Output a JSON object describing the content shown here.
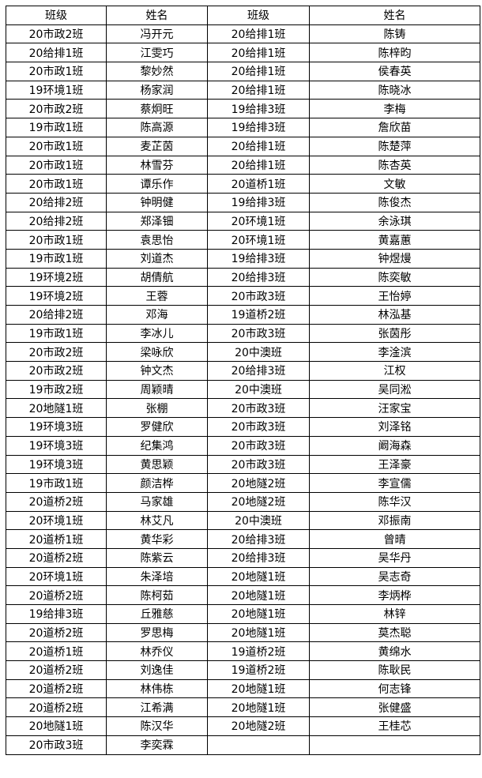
{
  "headers": [
    "班级",
    "姓名",
    "班级",
    "姓名"
  ],
  "rows": [
    [
      "20市政2班",
      "冯开元",
      "20给排1班",
      "陈铸"
    ],
    [
      "20给排1班",
      "江雯巧",
      "20给排1班",
      "陈梓昀"
    ],
    [
      "20市政1班",
      "黎妙然",
      "20给排1班",
      "侯春英"
    ],
    [
      "19环境1班",
      "杨家润",
      "20给排1班",
      "陈晓冰"
    ],
    [
      "20市政2班",
      "蔡炯旺",
      "19给排3班",
      "李梅"
    ],
    [
      "19市政1班",
      "陈高源",
      "19给排3班",
      "詹欣苗"
    ],
    [
      "20市政1班",
      "麦芷茵",
      "20给排1班",
      "陈楚萍"
    ],
    [
      "20市政1班",
      "林雪芬",
      "20给排1班",
      "陈杏英"
    ],
    [
      "20市政1班",
      "谭乐作",
      "20道桥1班",
      "文敏"
    ],
    [
      "20给排2班",
      "钟明健",
      "19给排3班",
      "陈俊杰"
    ],
    [
      "20给排2班",
      "郑泽钿",
      "20环境1班",
      "余泳琪"
    ],
    [
      "20市政1班",
      "袁思怡",
      "20环境1班",
      "黄嘉蕙"
    ],
    [
      "19市政1班",
      "刘道杰",
      "19给排3班",
      "钟煜熳"
    ],
    [
      "19环境2班",
      "胡倩航",
      "20给排3班",
      "陈奕敏"
    ],
    [
      "19环境2班",
      "王蓉",
      "20市政3班",
      "王怡婷"
    ],
    [
      "20给排2班",
      "邓海",
      "19道桥2班",
      "林泓基"
    ],
    [
      "19市政1班",
      "李冰儿",
      "20市政3班",
      "张茵彤"
    ],
    [
      "20市政2班",
      "梁咏欣",
      "20中澳班",
      "李淦滨"
    ],
    [
      "20市政2班",
      "钟文杰",
      "20给排3班",
      "江权"
    ],
    [
      "19市政2班",
      "周颖晴",
      "20中澳班",
      "吴同淞"
    ],
    [
      "20地隧1班",
      "张棚",
      "20市政3班",
      "汪家宝"
    ],
    [
      "19环境3班",
      "罗健欣",
      "20市政3班",
      "刘泽铭"
    ],
    [
      "19环境3班",
      "纪集鸿",
      "20市政3班",
      "阚海森"
    ],
    [
      "19环境3班",
      "黄思颖",
      "20市政3班",
      "王泽豪"
    ],
    [
      "19市政1班",
      "颜洁桦",
      "20地隧2班",
      "李宣儒"
    ],
    [
      "20道桥2班",
      "马家雄",
      "20地隧2班",
      "陈华汉"
    ],
    [
      "20环境1班",
      "林艾凡",
      "20中澳班",
      "邓振南"
    ],
    [
      "20道桥1班",
      "黄华彩",
      "20给排3班",
      "曾晴"
    ],
    [
      "20道桥2班",
      "陈紫云",
      "20给排3班",
      "吴华丹"
    ],
    [
      "20环境1班",
      "朱泽培",
      "20地隧1班",
      "吴志奇"
    ],
    [
      "20道桥2班",
      "陈柯茹",
      "20地隧1班",
      "李炳桦"
    ],
    [
      "19给排3班",
      "丘雅慈",
      "20地隧1班",
      "林锌"
    ],
    [
      "20道桥2班",
      "罗思梅",
      "20地隧1班",
      "莫杰聪"
    ],
    [
      "20道桥1班",
      "林乔仪",
      "19道桥2班",
      "黄绵水"
    ],
    [
      "20道桥2班",
      "刘逸佳",
      "19道桥2班",
      "陈耿民"
    ],
    [
      "20道桥2班",
      "林伟栋",
      "20地隧1班",
      "何志锋"
    ],
    [
      "20道桥2班",
      "江希满",
      "20地隧1班",
      "张健盛"
    ],
    [
      "20地隧1班",
      "陈汉华",
      "20地隧2班",
      "王桂芯"
    ],
    [
      "20市政3班",
      "李奕霖",
      "",
      ""
    ]
  ]
}
